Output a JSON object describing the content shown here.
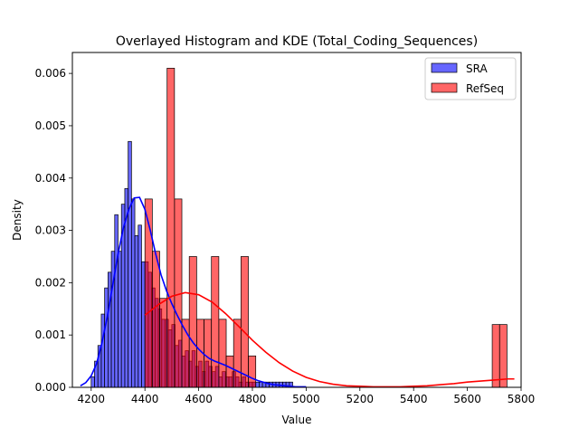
{
  "chart_data": {
    "type": "histogram",
    "title": "Overlayed Histogram and KDE (Total_Coding_Sequences)",
    "xlabel": "Value",
    "ylabel": "Density",
    "xlim": [
      4130,
      5800
    ],
    "ylim": [
      0,
      0.0064
    ],
    "xticks": [
      4200,
      4400,
      4600,
      4800,
      5000,
      5200,
      5400,
      5600,
      5800
    ],
    "yticks": [
      0.0,
      0.001,
      0.002,
      0.003,
      0.004,
      0.005,
      0.006
    ],
    "xtick_labels": [
      "4200",
      "4400",
      "4600",
      "4800",
      "5000",
      "5200",
      "5400",
      "5600",
      "5800"
    ],
    "ytick_labels": [
      "0.000",
      "0.001",
      "0.002",
      "0.003",
      "0.004",
      "0.005",
      "0.006"
    ],
    "grid": false,
    "legend_position": "top-right",
    "series": [
      {
        "name": "SRA",
        "color": "#0000ff",
        "bin_start": 4200,
        "bin_width": 12.5,
        "densities": [
          0.0002,
          0.0005,
          0.0008,
          0.0014,
          0.0019,
          0.0022,
          0.0026,
          0.0033,
          0.0026,
          0.0035,
          0.0038,
          0.0047,
          0.0036,
          0.0029,
          0.0031,
          0.0024,
          0.0024,
          0.0022,
          0.0019,
          0.0017,
          0.0015,
          0.0013,
          0.0013,
          0.0011,
          0.0012,
          0.0008,
          0.0009,
          0.0006,
          0.0007,
          0.0005,
          0.0007,
          0.0004,
          0.0005,
          0.0003,
          0.0005,
          0.0004,
          0.0003,
          0.0004,
          0.0002,
          0.0003,
          0.0002,
          0.0002,
          0.0003,
          0.0002,
          0.0001,
          0.0002,
          0.0001,
          0.0001,
          0.0001,
          0.0001,
          0.0001,
          0.0001,
          0.0001,
          0.0001,
          0.0001,
          0.0001,
          0.0001,
          0.0001,
          0.0001,
          0.0001
        ],
        "kde_x": [
          4160,
          4180,
          4200,
          4220,
          4240,
          4260,
          4280,
          4300,
          4320,
          4340,
          4360,
          4380,
          4400,
          4420,
          4440,
          4460,
          4480,
          4500,
          4520,
          4540,
          4560,
          4580,
          4600,
          4620,
          4640,
          4660,
          4680,
          4700,
          4720,
          4740,
          4760,
          4780,
          4800,
          4820,
          4840,
          4860,
          4880,
          4900,
          4920,
          4940,
          4960,
          4980,
          5000
        ],
        "kde_y": [
          3e-05,
          9e-05,
          0.00022,
          0.00045,
          0.00085,
          0.00135,
          0.00195,
          0.00255,
          0.00305,
          0.0034,
          0.00362,
          0.00363,
          0.0034,
          0.003,
          0.00255,
          0.00215,
          0.00185,
          0.0016,
          0.00138,
          0.00118,
          0.001,
          0.00085,
          0.00073,
          0.00063,
          0.00055,
          0.0005,
          0.00046,
          0.00042,
          0.00037,
          0.00032,
          0.00027,
          0.00022,
          0.00017,
          0.00013,
          0.0001,
          7e-05,
          5e-05,
          4e-05,
          3e-05,
          2e-05,
          1e-05,
          1e-05,
          1e-05
        ]
      },
      {
        "name": "RefSeq",
        "color": "#ff0000",
        "bin_start": 4400,
        "bin_width": 27.5,
        "densities": [
          0.0036,
          0.0026,
          0.0017,
          0.0061,
          0.0036,
          0.0013,
          0.0025,
          0.0013,
          0.0013,
          0.0025,
          0.0013,
          0.0006,
          0.0013,
          0.0025,
          0.0006,
          0,
          0,
          0,
          0,
          0,
          0,
          0,
          0,
          0,
          0,
          0,
          0,
          0,
          0,
          0,
          0,
          0,
          0,
          0,
          0,
          0,
          0,
          0,
          0,
          0,
          0,
          0,
          0,
          0,
          0,
          0,
          0,
          0.0012,
          0.0012
        ],
        "kde_x": [
          4400,
          4450,
          4500,
          4550,
          4600,
          4650,
          4700,
          4750,
          4800,
          4850,
          4900,
          4950,
          5000,
          5050,
          5100,
          5150,
          5200,
          5250,
          5300,
          5350,
          5400,
          5450,
          5500,
          5550,
          5600,
          5650,
          5700,
          5750,
          5775
        ],
        "kde_y": [
          0.00138,
          0.00158,
          0.00174,
          0.00181,
          0.00177,
          0.00163,
          0.00141,
          0.00116,
          0.0009,
          0.00067,
          0.00047,
          0.00031,
          0.00019,
          0.00011,
          6e-05,
          3e-05,
          2e-05,
          1e-05,
          1e-05,
          1e-05,
          2e-05,
          3e-05,
          5e-05,
          7e-05,
          0.0001,
          0.00012,
          0.00014,
          0.00016,
          0.00016
        ]
      }
    ]
  }
}
